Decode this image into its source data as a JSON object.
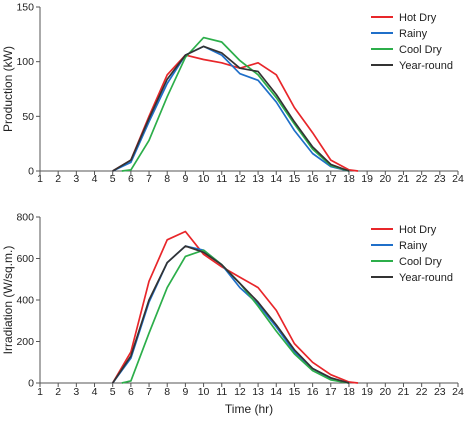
{
  "chart_data": [
    {
      "type": "line",
      "title": "",
      "xlabel": "",
      "ylabel": "Production (kW)",
      "ylim": [
        0,
        150
      ],
      "yticks": [
        0,
        50,
        100,
        150
      ],
      "xlim": [
        1,
        24
      ],
      "x": [
        1,
        2,
        3,
        4,
        5,
        6,
        7,
        8,
        9,
        10,
        11,
        12,
        13,
        14,
        15,
        16,
        17,
        18,
        19,
        20,
        21,
        22,
        23,
        24
      ],
      "grid": false,
      "legend_position": "top-right",
      "series": [
        {
          "name": "Hot Dry",
          "color": "#e8262a",
          "points": [
            [
              5,
              0
            ],
            [
              6,
              10
            ],
            [
              7,
              50
            ],
            [
              8,
              88
            ],
            [
              9,
              106
            ],
            [
              10,
              102
            ],
            [
              11,
              99
            ],
            [
              12,
              94
            ],
            [
              13,
              99
            ],
            [
              14,
              88
            ],
            [
              15,
              58
            ],
            [
              16,
              35
            ],
            [
              17,
              10
            ],
            [
              18,
              1
            ],
            [
              18.5,
              0
            ]
          ]
        },
        {
          "name": "Rainy",
          "color": "#1f6fc9",
          "points": [
            [
              5,
              0
            ],
            [
              6,
              8
            ],
            [
              7,
              45
            ],
            [
              8,
              80
            ],
            [
              9,
              106
            ],
            [
              10,
              114
            ],
            [
              11,
              106
            ],
            [
              12,
              89
            ],
            [
              13,
              83
            ],
            [
              14,
              63
            ],
            [
              15,
              37
            ],
            [
              16,
              16
            ],
            [
              17,
              4
            ],
            [
              18,
              0
            ]
          ]
        },
        {
          "name": "Cool Dry",
          "color": "#2cae4a",
          "points": [
            [
              5.5,
              0
            ],
            [
              6,
              1
            ],
            [
              7,
              28
            ],
            [
              8,
              68
            ],
            [
              9,
              104
            ],
            [
              10,
              122
            ],
            [
              11,
              118
            ],
            [
              12,
              101
            ],
            [
              13,
              88
            ],
            [
              14,
              67
            ],
            [
              15,
              43
            ],
            [
              16,
              20
            ],
            [
              17,
              5
            ],
            [
              18,
              0
            ]
          ]
        },
        {
          "name": "Year-round",
          "color": "#333333",
          "points": [
            [
              5,
              0
            ],
            [
              6,
              10
            ],
            [
              7,
              48
            ],
            [
              8,
              84
            ],
            [
              9,
              106
            ],
            [
              10,
              114
            ],
            [
              11,
              108
            ],
            [
              12,
              94
            ],
            [
              13,
              91
            ],
            [
              14,
              70
            ],
            [
              15,
              45
            ],
            [
              16,
              22
            ],
            [
              17,
              6
            ],
            [
              18,
              0
            ]
          ]
        }
      ]
    },
    {
      "type": "line",
      "title": "",
      "xlabel": "Time (hr)",
      "ylabel": "Irradiation (W/sq.m.)",
      "ylim": [
        0,
        800
      ],
      "yticks": [
        0,
        200,
        400,
        600,
        800
      ],
      "xlim": [
        1,
        24
      ],
      "x": [
        1,
        2,
        3,
        4,
        5,
        6,
        7,
        8,
        9,
        10,
        11,
        12,
        13,
        14,
        15,
        16,
        17,
        18,
        19,
        20,
        21,
        22,
        23,
        24
      ],
      "grid": false,
      "legend_position": "top-right",
      "series": [
        {
          "name": "Hot Dry",
          "color": "#e8262a",
          "points": [
            [
              5,
              0
            ],
            [
              6,
              150
            ],
            [
              7,
              490
            ],
            [
              8,
              690
            ],
            [
              9,
              730
            ],
            [
              10,
              620
            ],
            [
              11,
              560
            ],
            [
              12,
              510
            ],
            [
              13,
              460
            ],
            [
              14,
              350
            ],
            [
              15,
              190
            ],
            [
              16,
              100
            ],
            [
              17,
              40
            ],
            [
              18,
              5
            ],
            [
              18.5,
              0
            ]
          ]
        },
        {
          "name": "Rainy",
          "color": "#1f6fc9",
          "points": [
            [
              5,
              0
            ],
            [
              6,
              120
            ],
            [
              7,
              390
            ],
            [
              8,
              580
            ],
            [
              9,
              660
            ],
            [
              10,
              640
            ],
            [
              11,
              570
            ],
            [
              12,
              460
            ],
            [
              13,
              380
            ],
            [
              14,
              270
            ],
            [
              15,
              150
            ],
            [
              16,
              70
            ],
            [
              17,
              20
            ],
            [
              18,
              0
            ]
          ]
        },
        {
          "name": "Cool Dry",
          "color": "#2cae4a",
          "points": [
            [
              5.5,
              0
            ],
            [
              6,
              10
            ],
            [
              7,
              240
            ],
            [
              8,
              460
            ],
            [
              9,
              610
            ],
            [
              10,
              640
            ],
            [
              11,
              570
            ],
            [
              12,
              480
            ],
            [
              13,
              370
            ],
            [
              14,
              250
            ],
            [
              15,
              140
            ],
            [
              16,
              60
            ],
            [
              17,
              15
            ],
            [
              18,
              0
            ]
          ]
        },
        {
          "name": "Year-round",
          "color": "#333333",
          "points": [
            [
              5,
              0
            ],
            [
              6,
              130
            ],
            [
              7,
              400
            ],
            [
              8,
              580
            ],
            [
              9,
              660
            ],
            [
              10,
              630
            ],
            [
              11,
              570
            ],
            [
              12,
              480
            ],
            [
              13,
              390
            ],
            [
              14,
              280
            ],
            [
              15,
              160
            ],
            [
              16,
              70
            ],
            [
              17,
              25
            ],
            [
              18,
              0
            ]
          ]
        }
      ]
    }
  ]
}
